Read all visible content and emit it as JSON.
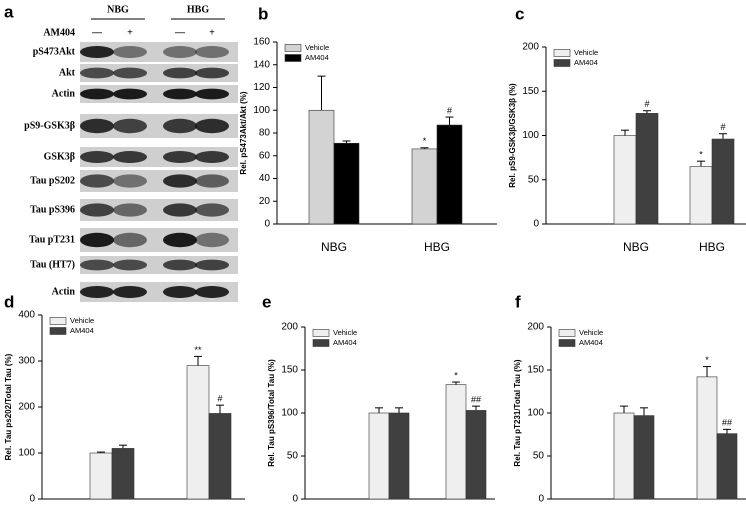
{
  "blot": {
    "label": "a",
    "groups": [
      "NBG",
      "HBG"
    ],
    "treatment": "AM404",
    "signs": [
      "—",
      "+",
      "—",
      "+"
    ],
    "rows": [
      "pS473Akt",
      "Akt",
      "Actin",
      "pS9-GSK3β",
      "GSK3β",
      "Tau pS202",
      "Tau pS396",
      "Tau pT231",
      "Tau (HT7)",
      "Actin"
    ]
  },
  "chart_data": [
    {
      "label": "b",
      "type": "bar",
      "ylabel": "Rel. pS473Akt/Akt (%)",
      "categories": [
        "NBG",
        "HBG"
      ],
      "series": [
        {
          "name": "Vehicle",
          "color": "#d3d3d3",
          "values": [
            100,
            66
          ],
          "errors": [
            30,
            1
          ],
          "annotations": [
            null,
            "*"
          ]
        },
        {
          "name": "AM404",
          "color": "#000000",
          "values": [
            71,
            87
          ],
          "errors": [
            2,
            7
          ],
          "annotations": [
            null,
            "#"
          ]
        }
      ],
      "ylim": [
        0,
        160
      ],
      "yticks": [
        0,
        20,
        40,
        60,
        80,
        100,
        120,
        140,
        160
      ],
      "legend": "upper left"
    },
    {
      "label": "c",
      "type": "bar",
      "ylabel": "Rel. pS9-GSK3β/GSK3β (%)",
      "categories": [
        "NBG",
        "HBG"
      ],
      "series": [
        {
          "name": "Vehicle",
          "color": "#efefef",
          "values": [
            100,
            65
          ],
          "errors": [
            6,
            6
          ],
          "annotations": [
            null,
            "*"
          ]
        },
        {
          "name": "AM404",
          "color": "#404040",
          "values": [
            125,
            96
          ],
          "errors": [
            3,
            6
          ],
          "annotations": [
            "#",
            "#"
          ]
        }
      ],
      "ylim": [
        0,
        200
      ],
      "yticks": [
        0,
        50,
        100,
        150,
        200
      ],
      "legend": "upper left"
    },
    {
      "label": "d",
      "type": "bar",
      "ylabel": "Rel. Tau ps202/Total Tau (%)",
      "categories": [
        "NBG",
        "HBG"
      ],
      "series": [
        {
          "name": "Vehicle",
          "color": "#efefef",
          "values": [
            100,
            290
          ],
          "errors": [
            2,
            20
          ],
          "annotations": [
            null,
            "**"
          ]
        },
        {
          "name": "AM404",
          "color": "#404040",
          "values": [
            110,
            186
          ],
          "errors": [
            7,
            18
          ],
          "annotations": [
            null,
            "#"
          ]
        }
      ],
      "ylim": [
        0,
        400
      ],
      "yticks": [
        0,
        100,
        200,
        300,
        400
      ],
      "legend": "upper left"
    },
    {
      "label": "e",
      "type": "bar",
      "ylabel": "Rel. Tau pS396/Total Tau (%)",
      "categories": [
        "NBG",
        "HBG"
      ],
      "series": [
        {
          "name": "Vehicle",
          "color": "#efefef",
          "values": [
            100,
            133
          ],
          "errors": [
            6,
            3
          ],
          "annotations": [
            null,
            "*"
          ]
        },
        {
          "name": "AM404",
          "color": "#404040",
          "values": [
            100,
            103
          ],
          "errors": [
            6,
            5
          ],
          "annotations": [
            null,
            "##"
          ]
        }
      ],
      "ylim": [
        0,
        200
      ],
      "yticks": [
        0,
        50,
        100,
        150,
        200
      ],
      "legend": "upper left"
    },
    {
      "label": "f",
      "type": "bar",
      "ylabel": "Rel. Tau pT231/Total Tau (%)",
      "categories": [
        "NBG",
        "HBG"
      ],
      "series": [
        {
          "name": "Vehicle",
          "color": "#efefef",
          "values": [
            100,
            142
          ],
          "errors": [
            8,
            12
          ],
          "annotations": [
            null,
            "*"
          ]
        },
        {
          "name": "AM404",
          "color": "#404040",
          "values": [
            97,
            76
          ],
          "errors": [
            9,
            5
          ],
          "annotations": [
            null,
            "##"
          ]
        }
      ],
      "ylim": [
        0,
        200
      ],
      "yticks": [
        0,
        50,
        100,
        150,
        200
      ],
      "legend": "upper left"
    }
  ]
}
